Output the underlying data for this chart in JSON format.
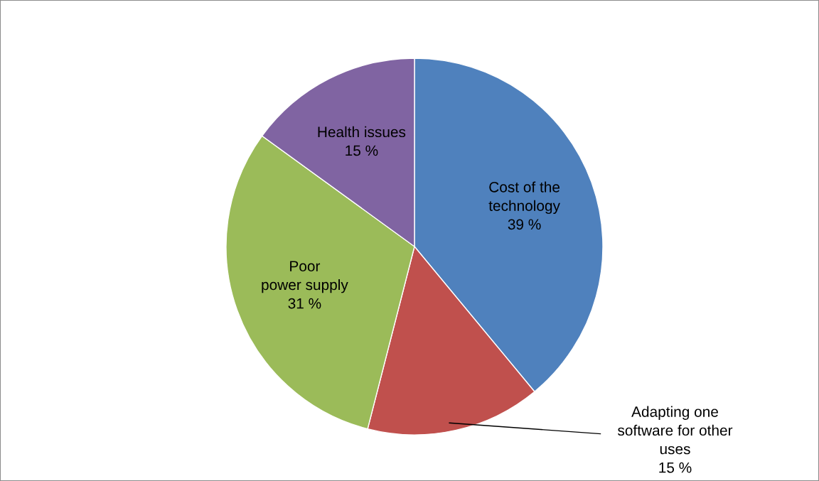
{
  "chart_data": {
    "type": "pie",
    "categories": [
      "Cost of the\ntechnology",
      "Adapting one\nsoftware for other\nuses",
      "Poor\npower supply",
      "Health issues"
    ],
    "values": [
      39,
      15,
      31,
      15
    ],
    "colors": [
      "#4f81bd",
      "#c0504d",
      "#9bbb59",
      "#8064a2"
    ],
    "value_labels": [
      "39 %",
      "15 %",
      "31 %",
      "15 %"
    ],
    "legend": false
  }
}
